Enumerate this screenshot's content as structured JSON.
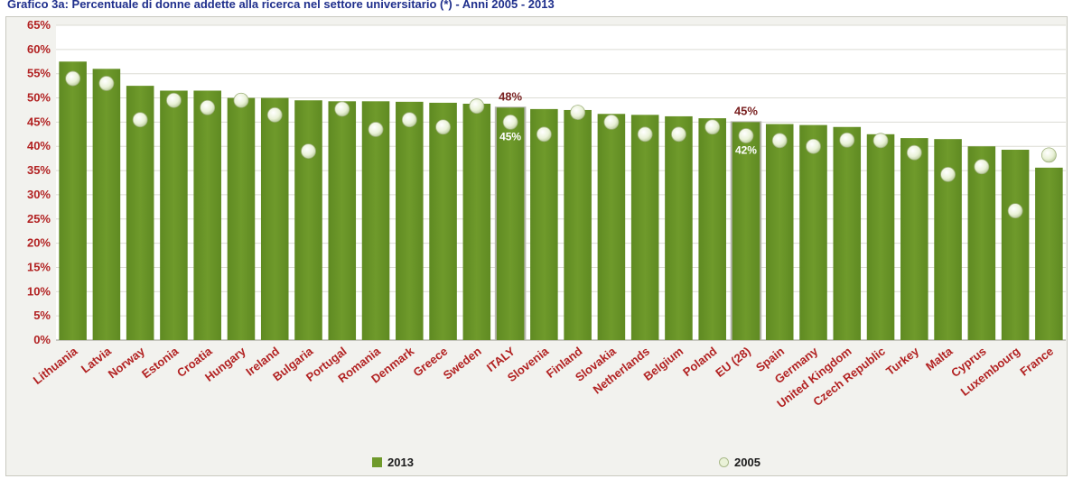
{
  "title": "Grafico 3a: Percentuale di donne addette alla ricerca nel settore universitario (*) - Anni 2005 - 2013",
  "colors": {
    "bar_2013": "#6f9a2b",
    "dot_2005": "#eaf2d8",
    "highlight_label": "#7a2222",
    "axis_text": "#b22222"
  },
  "chart_data": {
    "type": "bar",
    "ylim": [
      0,
      65
    ],
    "yticks": [
      "0%",
      "5%",
      "10%",
      "15%",
      "20%",
      "25%",
      "30%",
      "35%",
      "40%",
      "45%",
      "50%",
      "55%",
      "60%",
      "65%"
    ],
    "categories": [
      "Lithuania",
      "Latvia",
      "Norway",
      "Estonia",
      "Croatia",
      "Hungary",
      "Ireland",
      "Bulgaria",
      "Portugal",
      "Romania",
      "Denmark",
      "Greece",
      "Sweden",
      "ITALY",
      "Slovenia",
      "Finland",
      "Slovakia",
      "Netherlands",
      "Belgium",
      "Poland",
      "EU (28)",
      "Spain",
      "Germany",
      "United Kingdom",
      "Czech Republic",
      "Turkey",
      "Malta",
      "Cyprus",
      "Luxembourg",
      "France"
    ],
    "series": [
      {
        "name": "2013",
        "kind": "bar",
        "values": [
          57.5,
          56.0,
          52.5,
          51.5,
          51.5,
          50.0,
          50.0,
          49.5,
          49.3,
          49.3,
          49.2,
          49.0,
          48.8,
          48.0,
          47.7,
          47.5,
          46.7,
          46.5,
          46.2,
          45.8,
          45.0,
          44.6,
          44.4,
          44.0,
          42.5,
          41.7,
          41.5,
          40.0,
          39.3,
          35.6
        ]
      },
      {
        "name": "2005",
        "kind": "dot",
        "values": [
          54.0,
          53.0,
          45.5,
          49.5,
          48.0,
          49.5,
          46.5,
          39.0,
          47.7,
          43.5,
          45.5,
          44.0,
          48.3,
          45.0,
          42.5,
          47.0,
          45.0,
          42.5,
          42.5,
          44.0,
          42.2,
          41.2,
          40.0,
          41.3,
          41.2,
          38.7,
          34.2,
          35.8,
          26.7,
          38.2
        ]
      }
    ],
    "annotations": [
      {
        "category": "ITALY",
        "above_label": "48%",
        "inner_label": "45%"
      },
      {
        "category": "EU (28)",
        "above_label": "45%",
        "inner_label": "42%"
      }
    ],
    "legend": {
      "position": "bottom",
      "entries": [
        "2013",
        "2005"
      ]
    },
    "grid": true
  }
}
